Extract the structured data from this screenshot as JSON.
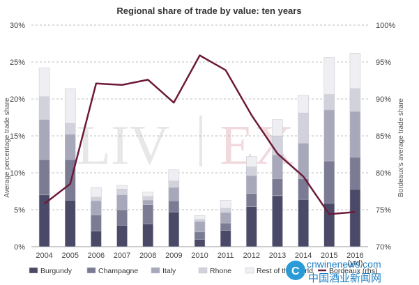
{
  "chart_data": {
    "type": "bar",
    "title": "Regional share of trade by value: ten years",
    "categories": [
      "2004",
      "2005",
      "2006",
      "2007",
      "2008",
      "2009",
      "2010",
      "2011",
      "2012",
      "2013",
      "2014",
      "2015",
      "2016"
    ],
    "category_sublabels": [
      "",
      "",
      "",
      "",
      "",
      "",
      "",
      "",
      "",
      "",
      "",
      "",
      "(ytd)"
    ],
    "stacked": true,
    "ylabel": "Average percentage trade share",
    "y2label": "Bordeaux's average trade share",
    "ylim": [
      0,
      30
    ],
    "y2lim": [
      70,
      100
    ],
    "yticks": [
      "0%",
      "5%",
      "10%",
      "15%",
      "20%",
      "25%",
      "30%"
    ],
    "y2ticks": [
      "70%",
      "75%",
      "80%",
      "85%",
      "90%",
      "95%",
      "100%"
    ],
    "grid": true,
    "legend_position": "bottom",
    "series": [
      {
        "name": "Burgundy",
        "axis": "left",
        "color": "#4a4a68",
        "values": [
          7.0,
          6.3,
          2.1,
          2.9,
          3.1,
          4.7,
          1.0,
          2.2,
          5.4,
          6.9,
          6.4,
          5.9,
          7.8
        ]
      },
      {
        "name": "Champagne",
        "axis": "left",
        "color": "#7b7b94",
        "values": [
          4.8,
          5.5,
          2.2,
          2.1,
          2.6,
          1.5,
          1.0,
          1.0,
          1.8,
          2.3,
          2.8,
          5.7,
          4.3
        ]
      },
      {
        "name": "Italy",
        "axis": "left",
        "color": "#a8a8bb",
        "values": [
          5.4,
          3.4,
          1.9,
          2.0,
          0.6,
          1.8,
          1.4,
          1.4,
          2.4,
          3.2,
          4.8,
          6.9,
          6.2
        ]
      },
      {
        "name": "Rhone",
        "axis": "left",
        "color": "#d2d2dc",
        "values": [
          3.1,
          1.5,
          0.5,
          0.8,
          0.5,
          0.9,
          0.3,
          0.6,
          1.2,
          2.6,
          4.1,
          2.1,
          3.1
        ]
      },
      {
        "name": "Rest of the World",
        "axis": "left",
        "color": "#efeff3",
        "values": [
          3.9,
          4.7,
          1.3,
          0.5,
          0.6,
          1.5,
          0.5,
          1.1,
          1.4,
          2.2,
          2.4,
          5.0,
          4.8
        ]
      },
      {
        "name": "Bordeaux (rhs)",
        "axis": "right",
        "type": "line",
        "color": "#6d1a3a",
        "values": [
          75.8,
          78.5,
          92.1,
          91.9,
          92.6,
          89.5,
          95.9,
          93.9,
          87.8,
          82.6,
          79.5,
          74.4,
          74.7
        ]
      }
    ]
  },
  "watermark": {
    "left": "LIV",
    "right": "EX"
  },
  "site_watermark": {
    "url": "cnwinenews.com",
    "cn": "中国酒业新闻网"
  }
}
